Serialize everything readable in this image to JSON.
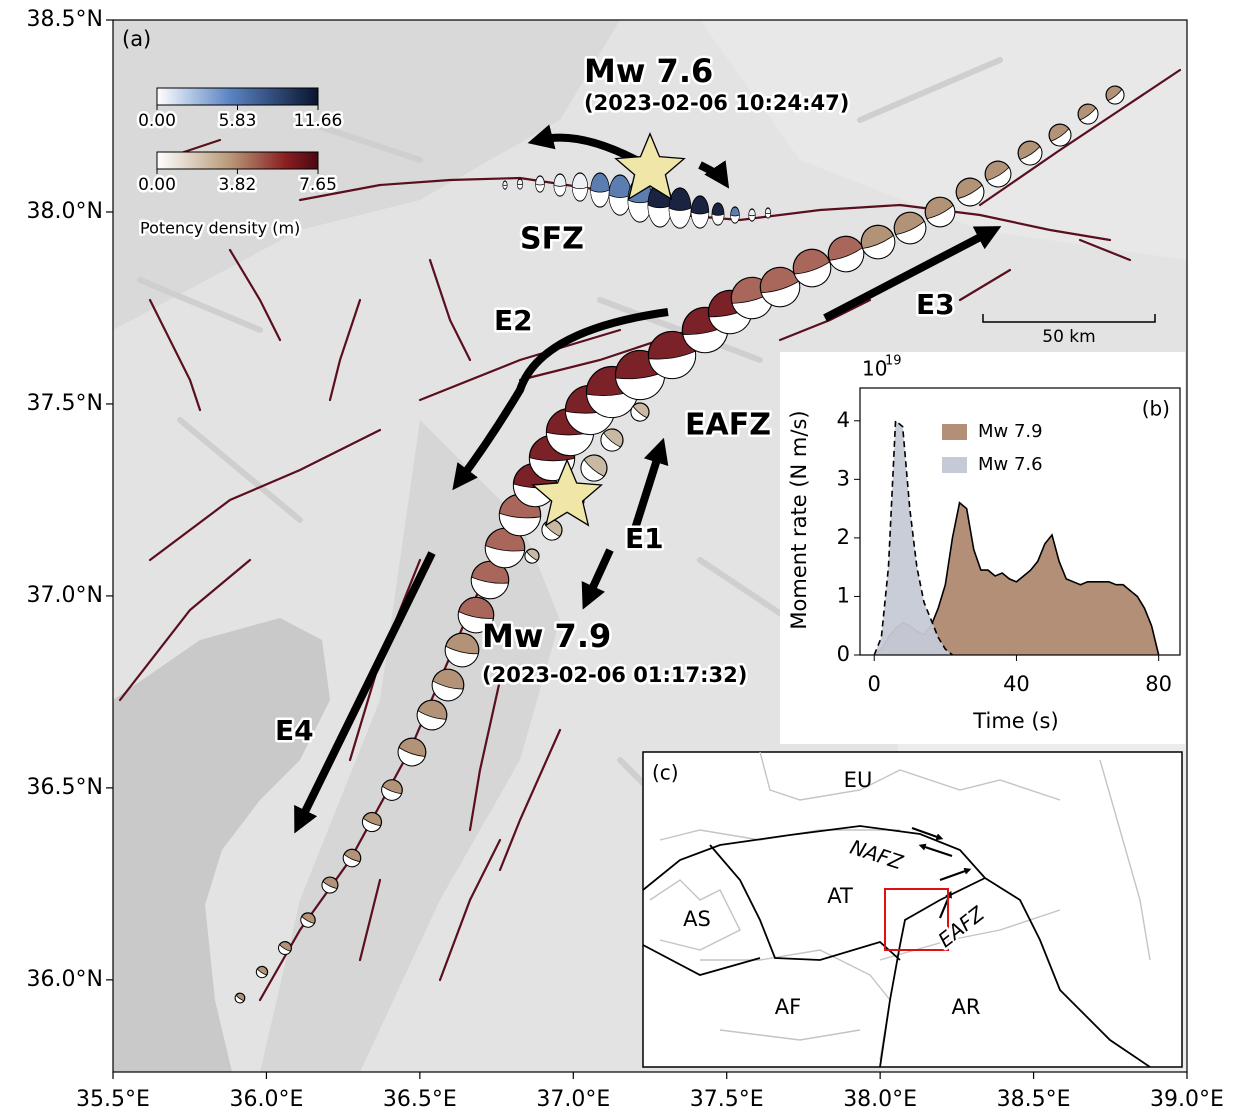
{
  "map": {
    "panel_label": "(a)",
    "xlim": [
      35.5,
      39.0
    ],
    "xticks": [
      {
        "value": 35.5,
        "label": "35.5°E"
      },
      {
        "value": 36.0,
        "label": "36.0°E"
      },
      {
        "value": 36.5,
        "label": "36.5°E"
      },
      {
        "value": 37.0,
        "label": "37.0°E"
      },
      {
        "value": 37.5,
        "label": "37.5°E"
      },
      {
        "value": 38.0,
        "label": "38.0°E"
      },
      {
        "value": 38.5,
        "label": "38.5°E"
      },
      {
        "value": 39.0,
        "label": "39.0°E"
      }
    ],
    "ylim": [
      35.76,
      38.5
    ],
    "yticks": [
      {
        "value": 36.0,
        "label": "36.0°N"
      },
      {
        "value": 36.5,
        "label": "36.5°N"
      },
      {
        "value": 37.0,
        "label": "37.0°N"
      },
      {
        "value": 37.5,
        "label": "37.5°N"
      },
      {
        "value": 38.0,
        "label": "38.0°N"
      },
      {
        "value": 38.5,
        "label": "38.5°N"
      }
    ],
    "events": [
      {
        "name": "Mw 7.6",
        "time": "(2023-02-06 10:24:47)",
        "lon": 37.25,
        "lat": 38.11
      },
      {
        "name": "Mw 7.9",
        "time": "(2023-02-06 01:17:32)",
        "lon": 36.98,
        "lat": 37.26
      }
    ],
    "labels": [
      "SFZ",
      "E2",
      "E3",
      "EAFZ",
      "E1",
      "E4"
    ],
    "scale_bar": "50 km",
    "colorbar_label": "Potency density (m)",
    "colorbars": [
      {
        "range": [
          0,
          11.66
        ],
        "ticks": [
          {
            "value": 0,
            "label": "0.00"
          },
          {
            "value": 5.83,
            "label": "5.83"
          },
          {
            "value": 11.66,
            "label": "11.66"
          }
        ]
      },
      {
        "range": [
          0,
          7.65
        ],
        "ticks": [
          {
            "value": 0,
            "label": "0.00"
          },
          {
            "value": 3.82,
            "label": "3.82"
          },
          {
            "value": 7.65,
            "label": "7.65"
          }
        ]
      }
    ]
  },
  "chart_data": {
    "type": "area",
    "panel_label": "(b)",
    "y_scale_base": "10",
    "y_scale_exponent": "19",
    "x_label": "Time (s)",
    "y_label": "Moment rate (N m/s)",
    "xlim": [
      -4,
      86
    ],
    "xticks": [
      0,
      40,
      80
    ],
    "ylim": [
      0,
      4.56
    ],
    "yticks": [
      0,
      1,
      2,
      3,
      4
    ],
    "x": [
      0,
      2,
      4,
      6,
      8,
      10,
      12,
      14,
      16,
      18,
      20,
      22,
      24,
      26,
      28,
      30,
      32,
      34,
      36,
      38,
      40,
      42,
      44,
      46,
      48,
      50,
      52,
      54,
      56,
      58,
      60,
      62,
      64,
      66,
      68,
      70,
      72,
      74,
      76,
      78,
      80
    ],
    "series": [
      {
        "name": "Mw 7.9",
        "color": "#b48f78",
        "linestyle": "solid",
        "values": [
          0,
          0.1,
          0.3,
          0.45,
          0.55,
          0.5,
          0.4,
          0.35,
          0.5,
          0.8,
          1.2,
          2.0,
          2.6,
          2.5,
          1.8,
          1.45,
          1.45,
          1.35,
          1.4,
          1.3,
          1.25,
          1.35,
          1.45,
          1.6,
          1.9,
          2.05,
          1.6,
          1.3,
          1.25,
          1.2,
          1.25,
          1.25,
          1.25,
          1.25,
          1.2,
          1.2,
          1.1,
          1.0,
          0.8,
          0.5,
          0
        ]
      },
      {
        "name": "Mw 7.6",
        "color": "#c5cad6",
        "linestyle": "dashed",
        "values": [
          0,
          0.3,
          1.5,
          4.0,
          3.9,
          2.5,
          1.5,
          0.9,
          0.6,
          0.3,
          0.1,
          0,
          null,
          null,
          null,
          null,
          null,
          null,
          null,
          null,
          null,
          null,
          null,
          null,
          null,
          null,
          null,
          null,
          null,
          null,
          null,
          null,
          null,
          null,
          null,
          null,
          null,
          null,
          null,
          null,
          null
        ]
      }
    ]
  },
  "inset_map": {
    "panel_label": "(c)",
    "plates": [
      "EU",
      "AT",
      "AS",
      "AF",
      "AR"
    ],
    "faults": [
      "NAFZ",
      "EAFZ"
    ]
  }
}
